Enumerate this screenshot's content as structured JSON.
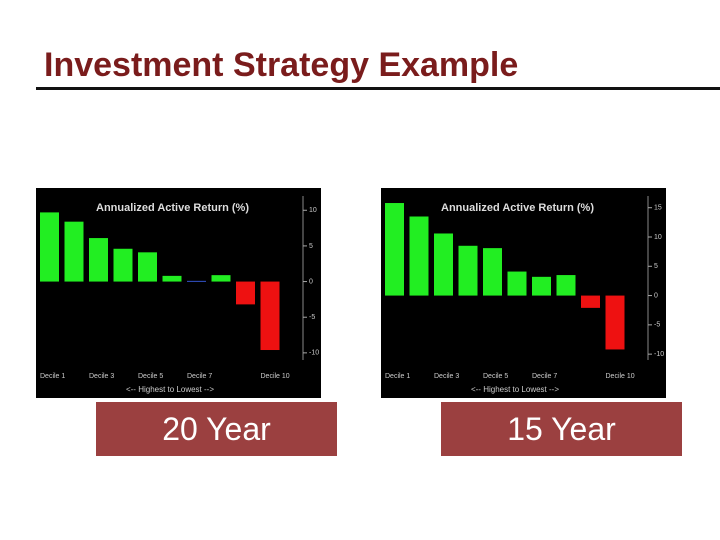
{
  "slide": {
    "title": "Investment Strategy Example"
  },
  "chart_data": [
    {
      "type": "bar",
      "title": "Annualized Active Return (%)",
      "x_label": "<-- Highest to Lowest -->",
      "caption": "20 Year",
      "categories": [
        "Decile 1",
        null,
        "Decile 3",
        null,
        "Decile 5",
        null,
        "Decile 7",
        null,
        null,
        "Decile 10"
      ],
      "values": [
        9.7,
        8.4,
        6.1,
        4.6,
        4.1,
        0.8,
        0.1,
        0.9,
        -3.2,
        -9.6
      ],
      "colors": [
        "#22ee22",
        "#22ee22",
        "#22ee22",
        "#22ee22",
        "#22ee22",
        "#22ee22",
        "#3355cc",
        "#22ee22",
        "#ee1111",
        "#ee1111"
      ],
      "ylim": [
        -11,
        12
      ],
      "yticks": [
        10,
        5,
        0,
        -5,
        -10
      ]
    },
    {
      "type": "bar",
      "title": "Annualized Active Return (%)",
      "x_label": "<-- Highest to Lowest -->",
      "caption": "15 Year",
      "categories": [
        "Decile 1",
        null,
        "Decile 3",
        null,
        "Decile 5",
        null,
        "Decile 7",
        null,
        null,
        "Decile 10"
      ],
      "values": [
        15.8,
        13.5,
        10.6,
        8.5,
        8.1,
        4.1,
        3.2,
        3.5,
        -2.1,
        -9.2
      ],
      "colors": [
        "#22ee22",
        "#22ee22",
        "#22ee22",
        "#22ee22",
        "#22ee22",
        "#22ee22",
        "#22ee22",
        "#22ee22",
        "#ee1111",
        "#ee1111"
      ],
      "ylim": [
        -11,
        17
      ],
      "yticks": [
        15,
        10,
        5,
        0,
        -5,
        -10
      ]
    }
  ]
}
